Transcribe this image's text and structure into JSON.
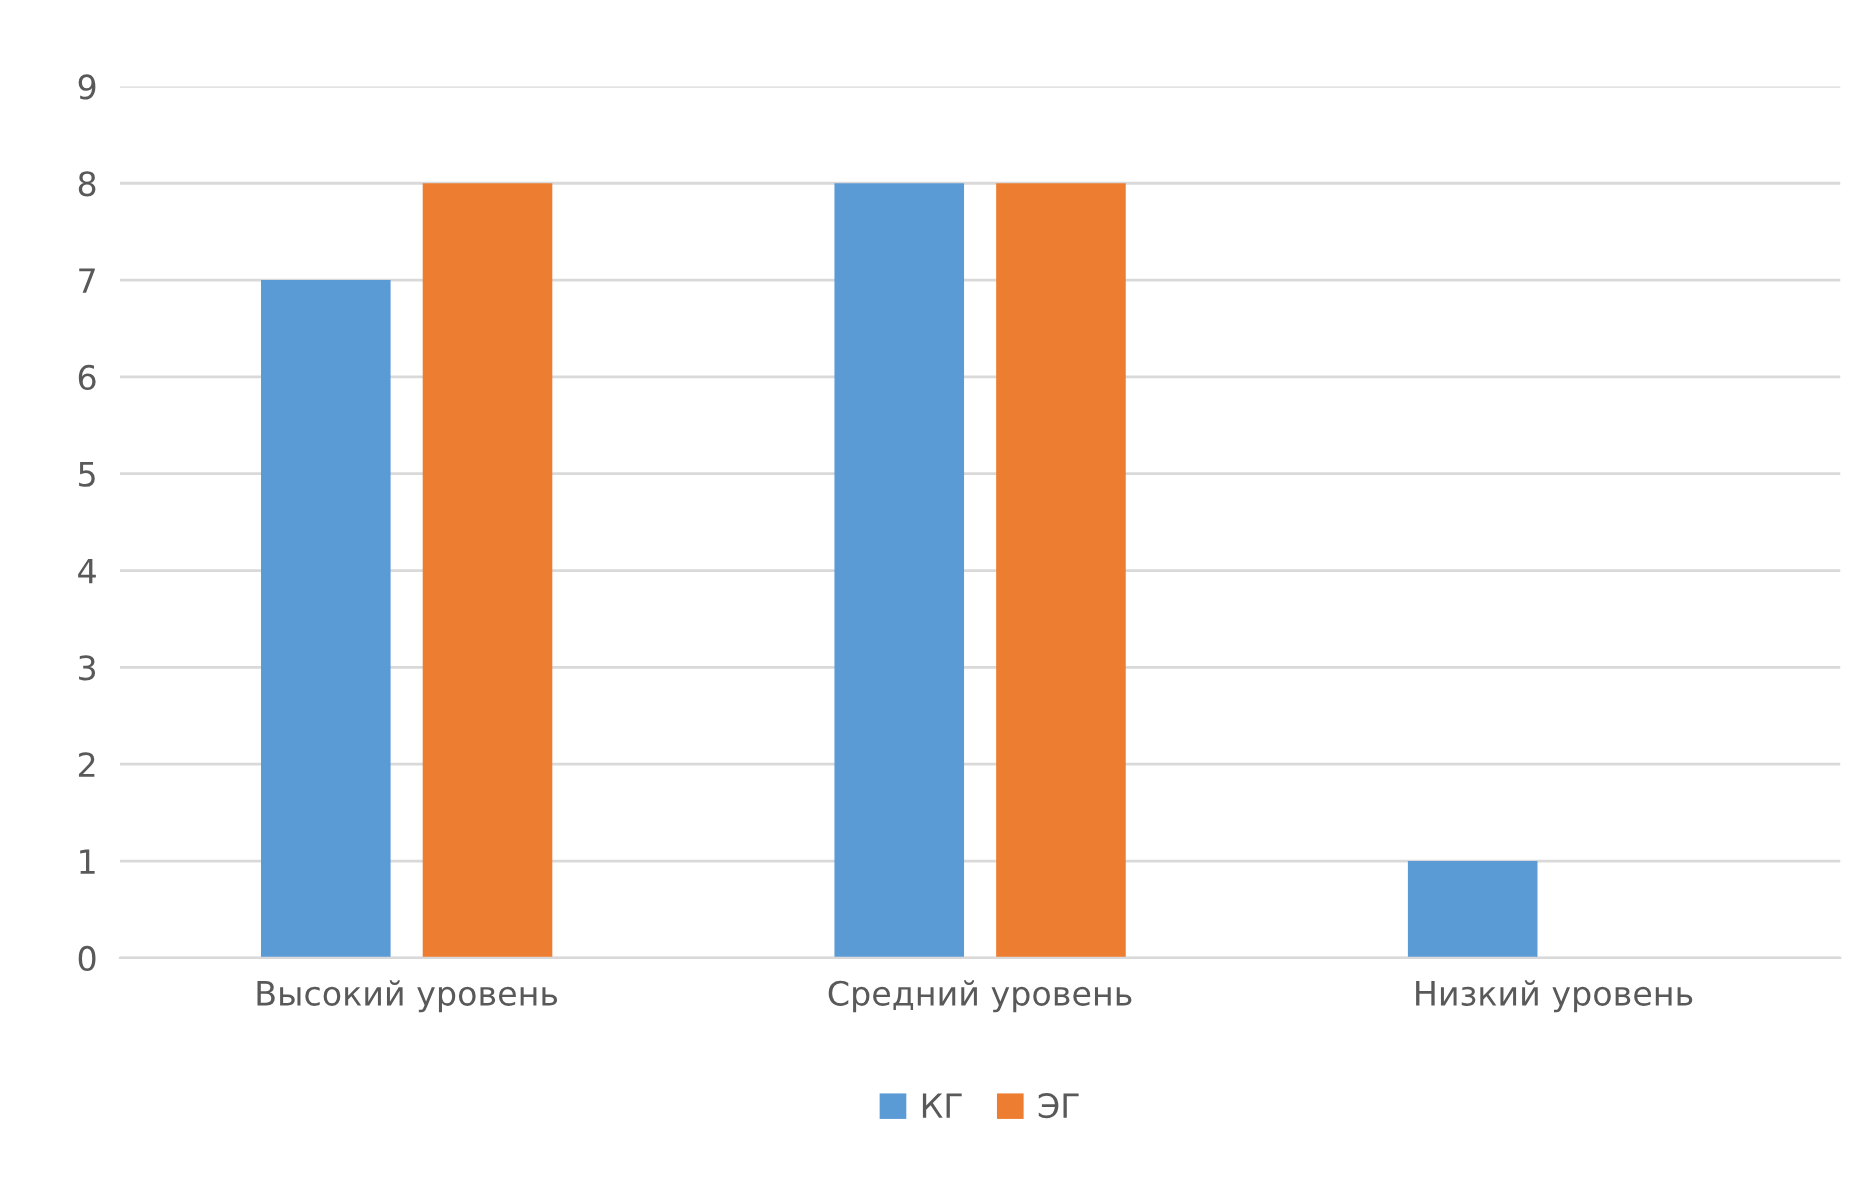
{
  "chart_data": {
    "type": "bar",
    "categories": [
      "Высокий уровень",
      "Средний уровень",
      "Низкий уровень"
    ],
    "series": [
      {
        "name": "КГ",
        "color": "#5b9bd5",
        "values": [
          7,
          8,
          1
        ]
      },
      {
        "name": "ЭГ",
        "color": "#ed7d31",
        "values": [
          8,
          8,
          0
        ]
      }
    ],
    "ylim": [
      0,
      9
    ],
    "yticks": [
      0,
      1,
      2,
      3,
      4,
      5,
      6,
      7,
      8,
      9
    ],
    "grid": "y",
    "legend": "bottom"
  }
}
